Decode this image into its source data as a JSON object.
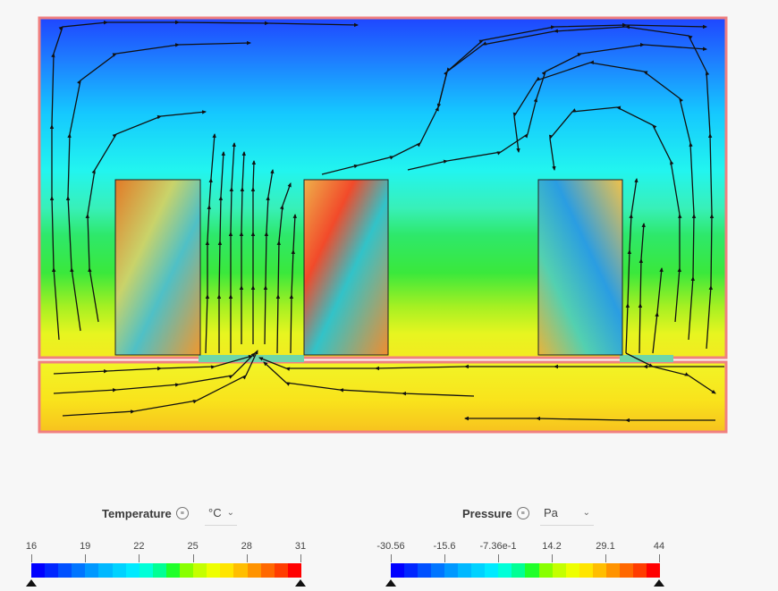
{
  "legends": {
    "temperature": {
      "title": "Temperature",
      "unit": "°C",
      "ticks": [
        "16",
        "19",
        "22",
        "25",
        "28",
        "31"
      ],
      "min": 16,
      "max": 31
    },
    "pressure": {
      "title": "Pressure",
      "unit": "Pa",
      "ticks": [
        "-30.56",
        "-15.6",
        "-7.36e-1",
        "14.2",
        "29.1",
        "44"
      ],
      "min": -30.56,
      "max": 44
    }
  },
  "colors": {
    "colormap": [
      "#0000ff",
      "#0026ff",
      "#0050ff",
      "#0075ff",
      "#0098ff",
      "#00b8ff",
      "#00d2ff",
      "#00eaff",
      "#00ffd8",
      "#00ff95",
      "#20ff2a",
      "#88ff00",
      "#c4ff00",
      "#eeff00",
      "#ffe500",
      "#ffbe00",
      "#ff9300",
      "#ff6800",
      "#ff3c00",
      "#ff0000"
    ],
    "outline": "#f08080",
    "stream": "#111111"
  },
  "icons": {
    "menu": "list-icon",
    "dropdown": "chevron-down-icon",
    "range_handle": "triangle-up-icon"
  }
}
